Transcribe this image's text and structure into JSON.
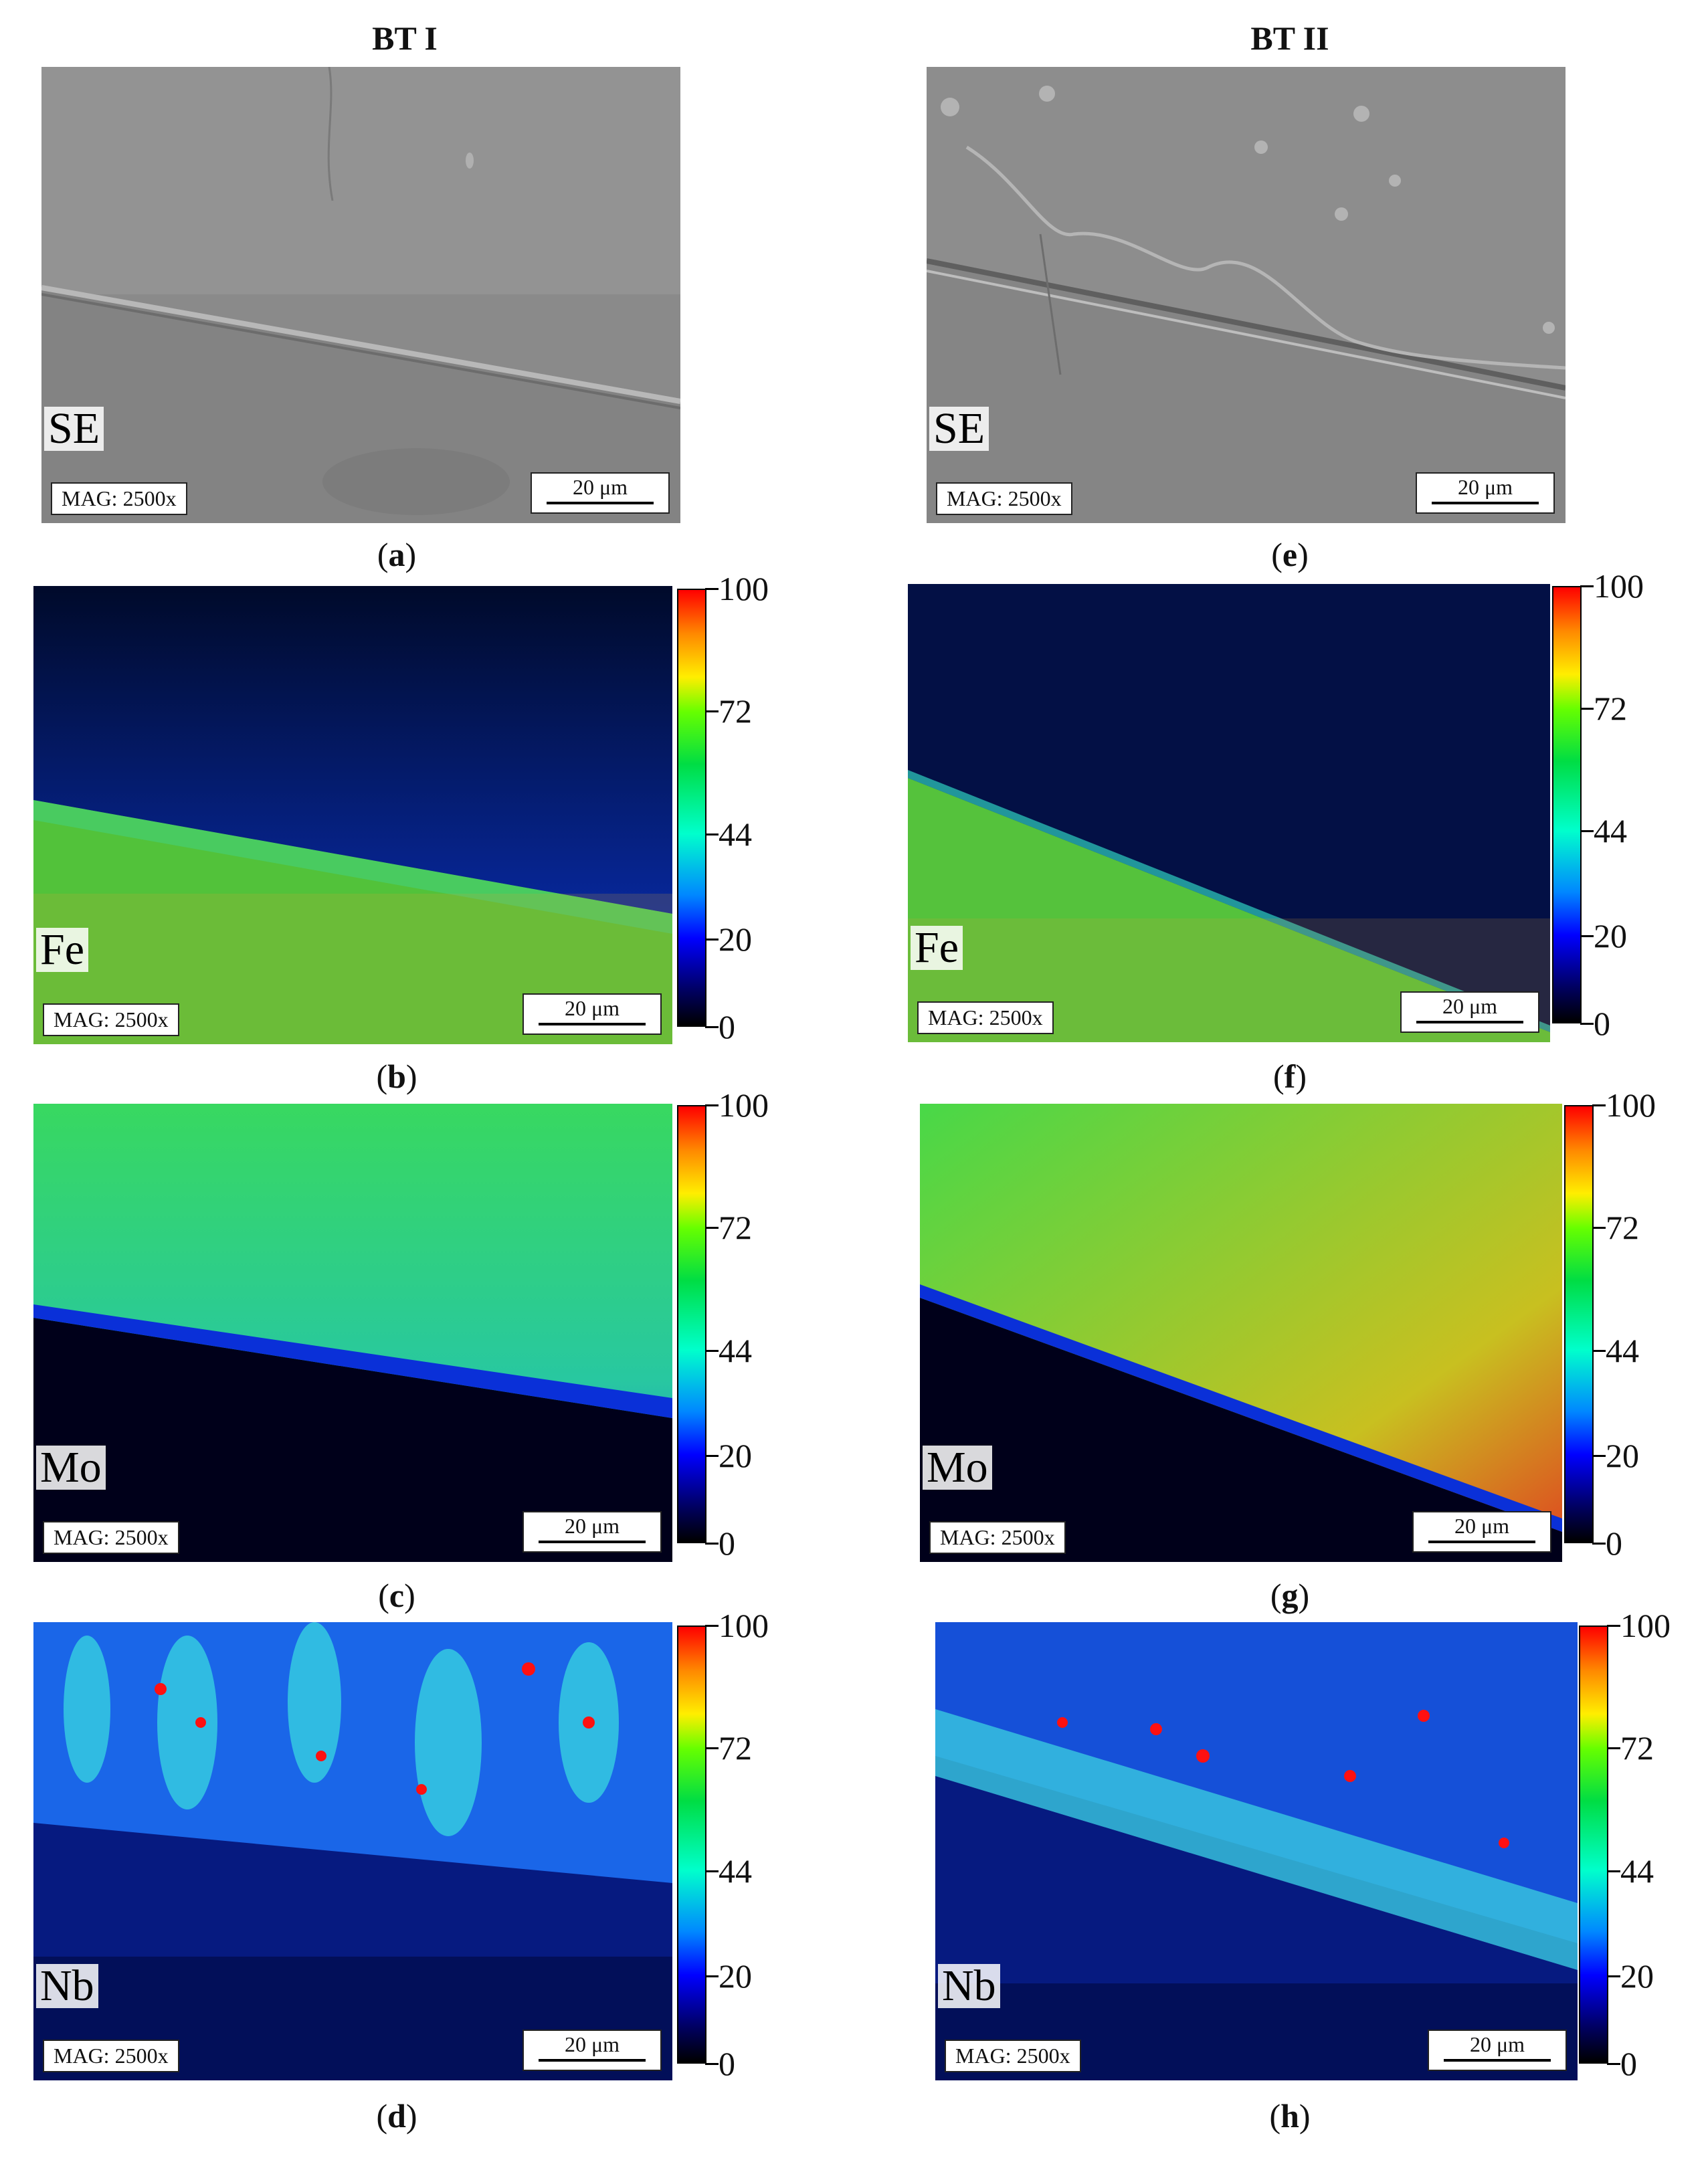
{
  "columns": {
    "left_title": "BT I",
    "right_title": "BT II"
  },
  "mag_text": "MAG: 2500x",
  "scale_text": "20 μm",
  "colorbar_ticks": [
    "100",
    "72",
    "44",
    "20",
    "0"
  ],
  "panels": {
    "a": {
      "label": "SE",
      "caption": "a"
    },
    "b": {
      "label": "Fe",
      "caption": "b"
    },
    "c": {
      "label": "Mo",
      "caption": "c"
    },
    "d": {
      "label": "Nb",
      "caption": "d"
    },
    "e": {
      "label": "SE",
      "caption": "e"
    },
    "f": {
      "label": "Fe",
      "caption": "f"
    },
    "g": {
      "label": "Mo",
      "caption": "g"
    },
    "h": {
      "label": "Nb",
      "caption": "h"
    }
  },
  "colors": {
    "se_gray": "#8c8c8c",
    "map_high": "#ff0000",
    "map_mid": "#00dd44",
    "map_low": "#000060"
  }
}
